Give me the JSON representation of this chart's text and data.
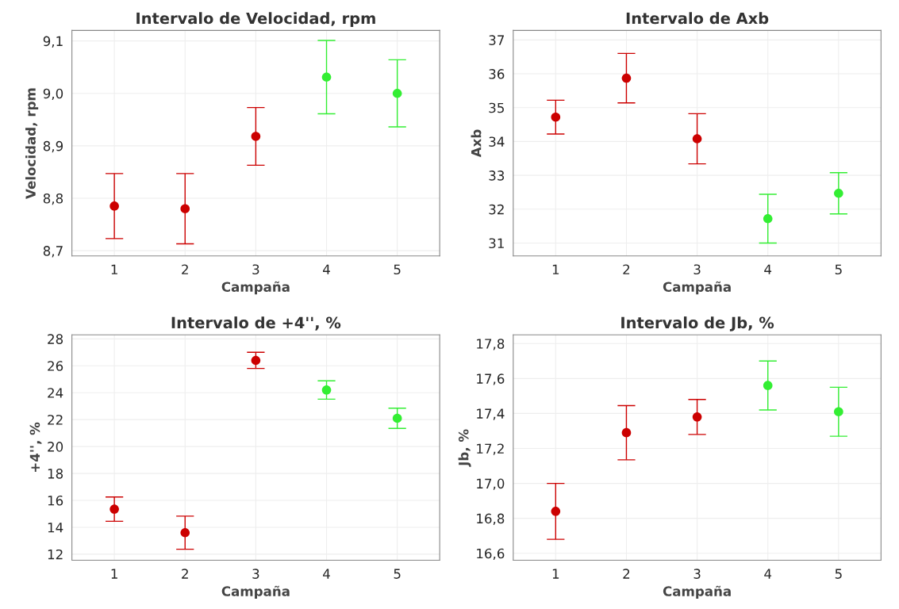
{
  "chart_data": [
    {
      "type": "scatter",
      "title": "Intervalo de Velocidad, rpm",
      "xlabel": "Campaña",
      "ylabel": "Velocidad, rpm",
      "categories": [
        "1",
        "2",
        "3",
        "4",
        "5"
      ],
      "values": [
        8.785,
        8.78,
        8.918,
        9.031,
        9.0
      ],
      "errors": [
        0.062,
        0.067,
        0.055,
        0.07,
        0.064
      ],
      "colors": [
        "#cc0000",
        "#cc0000",
        "#cc0000",
        "#33ee33",
        "#33ee33"
      ],
      "ylim": [
        8.69,
        9.12
      ],
      "yticks": [
        {
          "value": 8.7,
          "label": "8,7"
        },
        {
          "value": 8.8,
          "label": "8,8"
        },
        {
          "value": 8.9,
          "label": "8,9"
        },
        {
          "value": 9.0,
          "label": "9,0"
        },
        {
          "value": 9.1,
          "label": "9,1"
        }
      ],
      "grid": true,
      "marker": "circle"
    },
    {
      "type": "scatter",
      "title": "Intervalo de Axb",
      "xlabel": "Campaña",
      "ylabel": "Axb",
      "categories": [
        "1",
        "2",
        "3",
        "4",
        "5"
      ],
      "values": [
        34.72,
        35.87,
        34.08,
        31.72,
        32.47
      ],
      "errors": [
        0.5,
        0.73,
        0.74,
        0.72,
        0.61
      ],
      "colors": [
        "#cc0000",
        "#cc0000",
        "#cc0000",
        "#33ee33",
        "#33ee33"
      ],
      "ylim": [
        30.62,
        37.28
      ],
      "yticks": [
        31,
        32,
        33,
        34,
        35,
        36,
        37
      ],
      "grid": true,
      "marker": "circle"
    },
    {
      "type": "scatter",
      "title": "Intervalo de +4'', %",
      "xlabel": "Campaña",
      "ylabel": "+4'', %",
      "categories": [
        "1",
        "2",
        "3",
        "4",
        "5"
      ],
      "values": [
        15.35,
        13.6,
        26.4,
        24.2,
        22.1
      ],
      "errors": [
        0.9,
        1.23,
        0.6,
        0.68,
        0.75
      ],
      "colors": [
        "#cc0000",
        "#cc0000",
        "#cc0000",
        "#33ee33",
        "#33ee33"
      ],
      "ylim": [
        11.55,
        28.3
      ],
      "yticks": [
        12,
        14,
        16,
        18,
        20,
        22,
        24,
        26,
        28
      ],
      "grid": true,
      "marker": "circle"
    },
    {
      "type": "scatter",
      "title": "Intervalo de Jb, %",
      "xlabel": "Campaña",
      "ylabel": "Jb, %",
      "categories": [
        "1",
        "2",
        "3",
        "4",
        "5"
      ],
      "values": [
        16.84,
        17.29,
        17.38,
        17.56,
        17.41
      ],
      "errors": [
        0.16,
        0.155,
        0.1,
        0.14,
        0.14
      ],
      "colors": [
        "#cc0000",
        "#cc0000",
        "#cc0000",
        "#33ee33",
        "#33ee33"
      ],
      "ylim": [
        16.56,
        17.85
      ],
      "yticks": [
        {
          "value": 16.6,
          "label": "16,6"
        },
        {
          "value": 16.8,
          "label": "16,8"
        },
        {
          "value": 17.0,
          "label": "17,0"
        },
        {
          "value": 17.2,
          "label": "17,2"
        },
        {
          "value": 17.4,
          "label": "17,4"
        },
        {
          "value": 17.6,
          "label": "17,6"
        },
        {
          "value": 17.8,
          "label": "17,8"
        }
      ],
      "grid": true,
      "marker": "circle"
    }
  ]
}
